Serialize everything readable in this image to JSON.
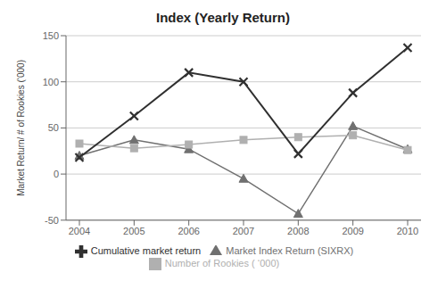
{
  "chart_data": {
    "type": "line",
    "title": "Index (Yearly Return)",
    "y_label": "Market Return/ # of Rookies (‘000)",
    "categories": [
      "2004",
      "2005",
      "2006",
      "2007",
      "2008",
      "2009",
      "2010"
    ],
    "series": [
      {
        "name": "Market Index Return (SIXRX)",
        "color": "#707070",
        "marker": "triangle",
        "values": [
          20,
          37,
          27,
          -5,
          -43,
          52,
          27
        ]
      },
      {
        "name": "Number of Rookies ( ‘000)",
        "color": "#b0b0b0",
        "marker": "square",
        "values": [
          33,
          28,
          32,
          37,
          40,
          42,
          26
        ]
      },
      {
        "name": "Cumulative market return",
        "color": "#303030",
        "marker": "x",
        "values": [
          18,
          63,
          110,
          100,
          22,
          88,
          137
        ]
      }
    ],
    "ylim": [
      -50,
      150
    ],
    "yticks": [
      -50,
      0,
      50,
      100,
      150
    ],
    "grid": true,
    "legend": "bottom"
  }
}
